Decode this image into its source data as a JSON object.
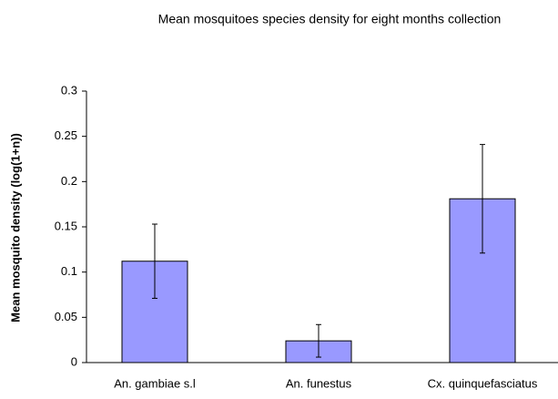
{
  "chart_data": {
    "type": "bar",
    "title": "Mean mosquitoes species density for eight months collection",
    "y_label": "Mean mosquito density  (log(1+n))",
    "categories": [
      "An. gambiae s.l",
      "An. funestus",
      "Cx. quinquefasciatus"
    ],
    "values": [
      0.112,
      0.024,
      0.181
    ],
    "errors": [
      0.041,
      0.018,
      0.06
    ],
    "color": "#9999ff",
    "ylim": [
      0,
      0.3
    ],
    "yticks": [
      0,
      0.05,
      0.1,
      0.15,
      0.2,
      0.25,
      0.3
    ]
  }
}
